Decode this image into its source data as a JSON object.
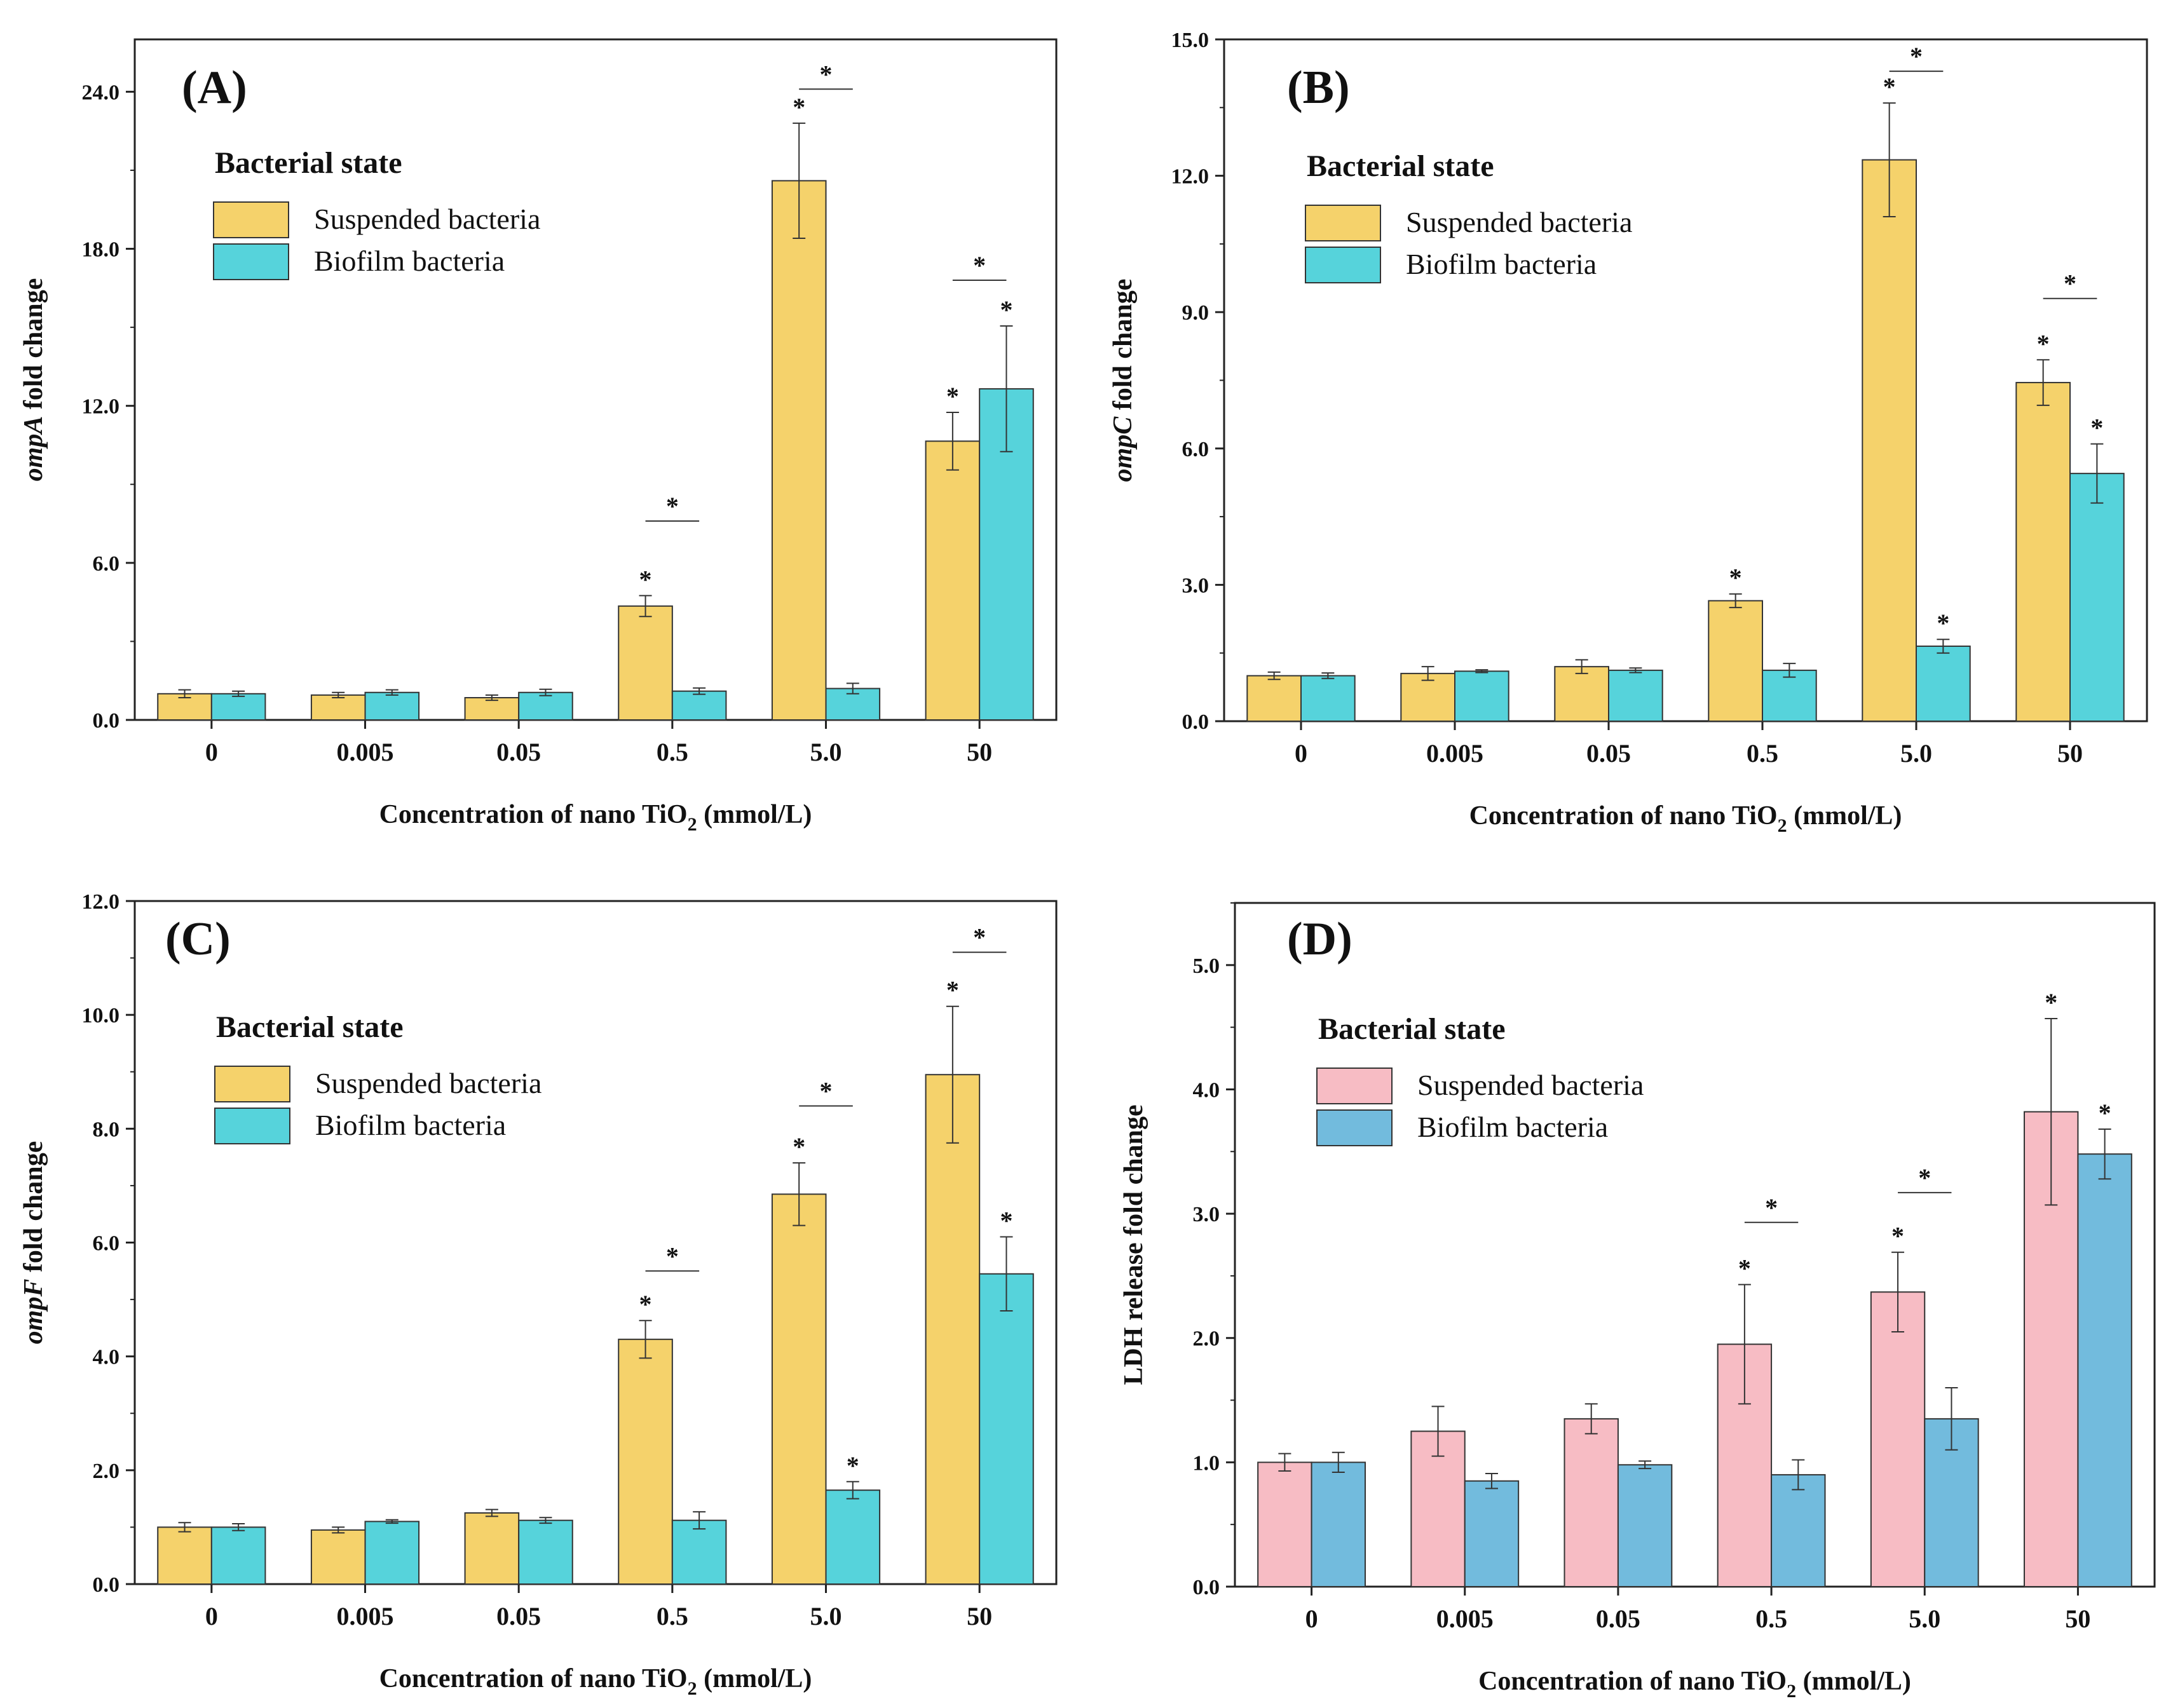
{
  "chart_data": [
    {
      "type": "bar",
      "panel": "(A)",
      "categories": [
        "0",
        "0.005",
        "0.05",
        "0.5",
        "5.0",
        "50"
      ],
      "xlabel": "Concentration of nano TiO",
      "xlabel_sub": "2",
      "xlabel_suffix": " (mmol/L)",
      "ylabel_italic": "ompA",
      "ylabel_rest": " fold change",
      "ylim": [
        0,
        26
      ],
      "yticks": [
        0,
        6,
        12,
        18,
        24
      ],
      "ytick_labels": [
        "0.0",
        "6.0",
        "12.0",
        "18.0",
        "24.0"
      ],
      "legend_title": "Bacterial state",
      "series": [
        {
          "name": "Suspended bacteria",
          "color": "#F5D26B",
          "values": [
            1.0,
            0.95,
            0.85,
            4.35,
            20.6,
            10.65
          ],
          "errors": [
            0.15,
            0.1,
            0.1,
            0.4,
            2.2,
            1.1
          ]
        },
        {
          "name": "Biofilm bacteria",
          "color": "#56D3DB",
          "values": [
            1.0,
            1.05,
            1.05,
            1.1,
            1.2,
            12.65
          ],
          "errors": [
            0.1,
            0.1,
            0.12,
            0.12,
            0.2,
            2.4
          ]
        }
      ],
      "annotations": [
        {
          "category": 3,
          "series": 0,
          "label": "*"
        },
        {
          "category": 4,
          "series": 0,
          "label": "*"
        },
        {
          "category": 5,
          "series": 0,
          "label": "*"
        },
        {
          "category": 5,
          "series": 1,
          "label": "*"
        }
      ],
      "brackets": [
        {
          "category": 3,
          "label": "*",
          "level": 7.6
        },
        {
          "category": 4,
          "label": "*",
          "level": 24.1
        },
        {
          "category": 5,
          "label": "*",
          "level": 16.8
        }
      ]
    },
    {
      "type": "bar",
      "panel": "(B)",
      "categories": [
        "0",
        "0.005",
        "0.05",
        "0.5",
        "5.0",
        "50"
      ],
      "xlabel": "Concentration of nano TiO",
      "xlabel_sub": "2",
      "xlabel_suffix": " (mmol/L)",
      "ylabel_italic": "ompC",
      "ylabel_rest": " fold change",
      "ylim": [
        0,
        15
      ],
      "yticks": [
        0,
        3,
        6,
        9,
        12,
        15
      ],
      "ytick_labels": [
        "0.0",
        "3.0",
        "6.0",
        "9.0",
        "12.0",
        "15.0"
      ],
      "legend_title": "Bacterial state",
      "series": [
        {
          "name": "Suspended bacteria",
          "color": "#F5D26B",
          "values": [
            1.0,
            1.05,
            1.2,
            2.65,
            12.35,
            7.45
          ],
          "errors": [
            0.08,
            0.15,
            0.15,
            0.15,
            1.25,
            0.5
          ]
        },
        {
          "name": "Biofilm bacteria",
          "color": "#56D3DB",
          "values": [
            1.0,
            1.1,
            1.12,
            1.12,
            1.65,
            5.45
          ],
          "errors": [
            0.06,
            0.03,
            0.05,
            0.15,
            0.15,
            0.65
          ]
        }
      ],
      "annotations": [
        {
          "category": 3,
          "series": 0,
          "label": "*"
        },
        {
          "category": 4,
          "series": 0,
          "label": "*"
        },
        {
          "category": 4,
          "series": 1,
          "label": "*"
        },
        {
          "category": 5,
          "series": 0,
          "label": "*"
        },
        {
          "category": 5,
          "series": 1,
          "label": "*"
        }
      ],
      "brackets": [
        {
          "category": 4,
          "label": "*",
          "level": 14.3
        },
        {
          "category": 5,
          "label": "*",
          "level": 9.3
        }
      ]
    },
    {
      "type": "bar",
      "panel": "(C)",
      "categories": [
        "0",
        "0.005",
        "0.05",
        "0.5",
        "5.0",
        "50"
      ],
      "xlabel": "Concentration of nano TiO",
      "xlabel_sub": "2",
      "xlabel_suffix": " (mmol/L)",
      "ylabel_italic": "ompF",
      "ylabel_rest": " fold change",
      "ylim": [
        0,
        12
      ],
      "yticks": [
        0,
        2,
        4,
        6,
        8,
        10,
        12
      ],
      "ytick_labels": [
        "0.0",
        "2.0",
        "4.0",
        "6.0",
        "8.0",
        "10.0",
        "12.0"
      ],
      "legend_title": "Bacterial state",
      "series": [
        {
          "name": "Suspended bacteria",
          "color": "#F5D26B",
          "values": [
            1.0,
            0.95,
            1.25,
            4.3,
            6.85,
            8.95
          ],
          "errors": [
            0.08,
            0.05,
            0.06,
            0.33,
            0.55,
            1.2
          ]
        },
        {
          "name": "Biofilm bacteria",
          "color": "#56D3DB",
          "values": [
            1.0,
            1.1,
            1.12,
            1.12,
            1.65,
            5.45
          ],
          "errors": [
            0.06,
            0.03,
            0.05,
            0.15,
            0.15,
            0.65
          ]
        }
      ],
      "annotations": [
        {
          "category": 3,
          "series": 0,
          "label": "*"
        },
        {
          "category": 4,
          "series": 0,
          "label": "*"
        },
        {
          "category": 4,
          "series": 1,
          "label": "*"
        },
        {
          "category": 5,
          "series": 0,
          "label": "*"
        },
        {
          "category": 5,
          "series": 1,
          "label": "*"
        }
      ],
      "brackets": [
        {
          "category": 3,
          "label": "*",
          "level": 5.5
        },
        {
          "category": 4,
          "label": "*",
          "level": 8.4
        },
        {
          "category": 5,
          "label": "*",
          "level": 11.1
        }
      ]
    },
    {
      "type": "bar",
      "panel": "(D)",
      "categories": [
        "0",
        "0.005",
        "0.05",
        "0.5",
        "5.0",
        "50"
      ],
      "xlabel": "Concentration of nano TiO",
      "xlabel_sub": "2",
      "xlabel_suffix": " (mmol/L)",
      "ylabel_italic": "",
      "ylabel_rest": "LDH release fold change",
      "ylim": [
        0,
        5.5
      ],
      "yticks": [
        0,
        1,
        2,
        3,
        4,
        5
      ],
      "ytick_labels": [
        "0.0",
        "1.0",
        "2.0",
        "3.0",
        "4.0",
        "5.0"
      ],
      "legend_title": "Bacterial state",
      "series": [
        {
          "name": "Suspended bacteria",
          "color": "#F7BCC4",
          "values": [
            1.0,
            1.25,
            1.35,
            1.95,
            2.37,
            3.82
          ],
          "errors": [
            0.07,
            0.2,
            0.12,
            0.48,
            0.32,
            0.75
          ]
        },
        {
          "name": "Biofilm bacteria",
          "color": "#72BBDD",
          "values": [
            1.0,
            0.85,
            0.98,
            0.9,
            1.35,
            3.48
          ],
          "errors": [
            0.08,
            0.06,
            0.03,
            0.12,
            0.25,
            0.2
          ]
        }
      ],
      "annotations": [
        {
          "category": 3,
          "series": 0,
          "label": "*"
        },
        {
          "category": 4,
          "series": 0,
          "label": "*"
        },
        {
          "category": 5,
          "series": 0,
          "label": "*"
        },
        {
          "category": 5,
          "series": 1,
          "label": "*"
        }
      ],
      "brackets": [
        {
          "category": 3,
          "label": "*",
          "level": 2.93
        },
        {
          "category": 4,
          "label": "*",
          "level": 3.17
        }
      ]
    }
  ]
}
